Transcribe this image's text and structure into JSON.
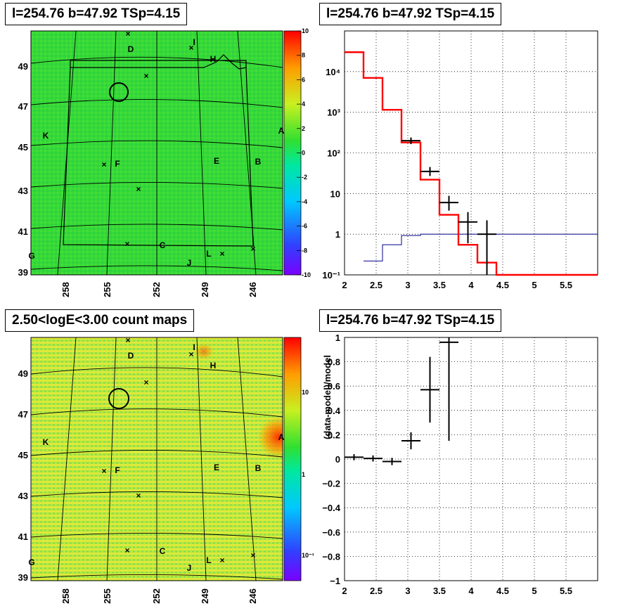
{
  "panels": {
    "top_left_title": "l=254.76 b=47.92 TSp=4.15",
    "top_right_title": "l=254.76 b=47.92 TSp=4.15",
    "bottom_left_title": "2.50<logE<3.00 count maps",
    "bottom_right_title": "l=254.76 b=47.92 TSp=4.15"
  },
  "map_labels": [
    "A",
    "B",
    "C",
    "D",
    "E",
    "F",
    "G",
    "H",
    "I",
    "J",
    "K",
    "L"
  ],
  "map_axes": {
    "lat_ticks": [
      "49",
      "47",
      "45",
      "43",
      "41",
      "39"
    ],
    "lon_ticks": [
      "258",
      "255",
      "252",
      "249",
      "246"
    ]
  },
  "colorbar_top": [
    "10",
    "8",
    "6",
    "4",
    "2",
    "0",
    "-2",
    "-4",
    "-6",
    "-8",
    "-10"
  ],
  "colorbar_bottom": [
    "10",
    "1",
    "10⁻¹"
  ],
  "colors": {
    "model_line": "#ff0000",
    "bg_line": "#00008b",
    "data": "#000000"
  },
  "chart_data": [
    {
      "type": "line",
      "title": "l=254.76 b=47.92 TSp=4.15",
      "yscale": "log",
      "xlim": [
        2,
        6
      ],
      "ylim": [
        0.1,
        100000
      ],
      "xticks": [
        "2",
        "2.5",
        "3",
        "3.5",
        "4",
        "4.5",
        "5",
        "5.5"
      ],
      "yticks": [
        "10⁻¹",
        "1",
        "10",
        "10²",
        "10³",
        "10⁴"
      ],
      "series": [
        {
          "edges": [
            2.0,
            2.3,
            2.6,
            2.9,
            3.2,
            3.5,
            3.8,
            4.1,
            4.4,
            6.0
          ],
          "values": [
            30000,
            7000,
            1150,
            180,
            22,
            3,
            0.55,
            0.2,
            0.1
          ]
        },
        {
          "edges": [
            2.3,
            2.6,
            2.9,
            3.2,
            3.5,
            6.0
          ],
          "values": [
            0.22,
            0.55,
            0.93,
            1.0,
            1.0
          ]
        },
        {
          "x": [
            3.05,
            3.35,
            3.65,
            3.95,
            4.25
          ],
          "y": [
            200,
            35,
            6,
            2,
            1
          ],
          "ylo": [
            165,
            27,
            3.8,
            0.6,
            0.1
          ],
          "yhi": [
            240,
            45,
            8.8,
            3.5,
            2.2
          ],
          "xerr": 0.15
        }
      ]
    },
    {
      "type": "scatter",
      "title": "l=254.76 b=47.92 TSp=4.15",
      "ylabel": "(data-model)/model",
      "xlim": [
        2,
        6
      ],
      "ylim": [
        -1,
        1
      ],
      "xticks": [
        "2",
        "2.5",
        "3",
        "3.5",
        "4",
        "4.5",
        "5",
        "5.5"
      ],
      "yticks": [
        "−1",
        "−0.8",
        "−0.6",
        "−0.4",
        "−0.2",
        "0",
        "0.2",
        "0.4",
        "0.6",
        "0.8",
        "1"
      ],
      "points": {
        "x": [
          2.15,
          2.45,
          2.75,
          3.05,
          3.35,
          3.65
        ],
        "y": [
          0.015,
          0.005,
          -0.02,
          0.15,
          0.57,
          0.96
        ],
        "ylo": [
          -0.01,
          -0.02,
          -0.05,
          0.08,
          0.3,
          0.15
        ],
        "yhi": [
          0.04,
          0.03,
          0.01,
          0.22,
          0.84,
          1.0
        ],
        "xerr": 0.15
      }
    }
  ]
}
